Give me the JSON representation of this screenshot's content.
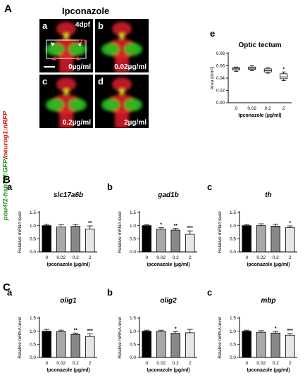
{
  "panelA": {
    "letter": "A",
    "title": "Ipconazole",
    "ylabel_green": "pou4f1-hsp70l:GFP",
    "ylabel_sep": "/",
    "ylabel_red": "neurog1:nRFP",
    "stage": "4dpf",
    "ot_label": "OT",
    "images": [
      {
        "tag": "a",
        "conc": "0µg/ml"
      },
      {
        "tag": "b",
        "conc": "0.02µg/ml"
      },
      {
        "tag": "c",
        "conc": "0.2µg/ml"
      },
      {
        "tag": "d",
        "conc": "2µg/ml"
      }
    ],
    "colors": {
      "green": "#22cc22",
      "red": "#e8202a"
    }
  },
  "panelB_letter": "B",
  "panelC_letter": "C",
  "chart_data": [
    {
      "id": "Ae",
      "letter": "e",
      "type": "boxplot",
      "title": "Optic tectum",
      "ylabel": "Area (mm²)",
      "xlabel": "Ipconazole (µg/ml)",
      "categories": [
        "0",
        "0.02",
        "0.2",
        "2"
      ],
      "boxes": [
        {
          "min": 0.051,
          "q1": 0.053,
          "median": 0.055,
          "q3": 0.057,
          "max": 0.058
        },
        {
          "min": 0.052,
          "q1": 0.054,
          "median": 0.056,
          "q3": 0.058,
          "max": 0.06
        },
        {
          "min": 0.048,
          "q1": 0.05,
          "median": 0.052,
          "q3": 0.055,
          "max": 0.057
        },
        {
          "min": 0.036,
          "q1": 0.039,
          "median": 0.042,
          "q3": 0.047,
          "max": 0.05
        }
      ],
      "sig": [
        "",
        "",
        "",
        "*"
      ],
      "ylim": [
        0,
        0.08
      ],
      "yticks": [
        "0.00",
        "0.02",
        "0.04",
        "0.06",
        "0.08"
      ]
    },
    {
      "id": "Ba",
      "letter": "a",
      "type": "bar",
      "title": "slc17a6b",
      "ylabel": "Relative mRNA level",
      "xlabel": "Ipconazole (µg/ml)",
      "categories": [
        "0",
        "0.02",
        "0.2",
        "2"
      ],
      "values": [
        1.0,
        0.95,
        0.97,
        0.87
      ],
      "errors": [
        0.05,
        0.08,
        0.07,
        0.12
      ],
      "sig": [
        "",
        "",
        "",
        "**"
      ],
      "ylim": [
        0,
        1.5
      ],
      "yticks": [
        "0.0",
        "0.5",
        "1.0",
        "1.5"
      ]
    },
    {
      "id": "Bb",
      "letter": "b",
      "type": "bar",
      "title": "gad1b",
      "ylabel": "Relative mRNA level",
      "xlabel": "Ipconazole (µg/ml)",
      "categories": [
        "0",
        "0.02",
        "0.2",
        "2"
      ],
      "values": [
        1.0,
        0.87,
        0.83,
        0.67
      ],
      "errors": [
        0.04,
        0.05,
        0.06,
        0.13
      ],
      "sig": [
        "",
        "*",
        "**",
        "***"
      ],
      "ylim": [
        0,
        1.5
      ],
      "yticks": [
        "0.0",
        "0.5",
        "1.0",
        "1.5"
      ]
    },
    {
      "id": "Bc",
      "letter": "c",
      "type": "bar",
      "title": "th",
      "ylabel": "Relative mRNA level",
      "xlabel": "Ipconazole (µg/ml)",
      "categories": [
        "0",
        "0.02",
        "0.2",
        "2"
      ],
      "values": [
        1.0,
        1.0,
        0.98,
        0.92
      ],
      "errors": [
        0.04,
        0.07,
        0.08,
        0.07
      ],
      "sig": [
        "",
        "",
        "",
        "*"
      ],
      "ylim": [
        0,
        1.5
      ],
      "yticks": [
        "0.0",
        "0.5",
        "1.0",
        "1.5"
      ]
    },
    {
      "id": "Ca",
      "letter": "a",
      "type": "bar",
      "title": "olig1",
      "ylabel": "Relative mRNA level",
      "xlabel": "Ipconazole (µg/ml)",
      "categories": [
        "0",
        "0.02",
        "0.2",
        "2"
      ],
      "values": [
        1.0,
        0.98,
        0.88,
        0.8
      ],
      "errors": [
        0.07,
        0.06,
        0.05,
        0.1
      ],
      "sig": [
        "",
        "",
        "**",
        "***"
      ],
      "ylim": [
        0,
        1.5
      ],
      "yticks": [
        "0.0",
        "0.5",
        "1.0",
        "1.5"
      ]
    },
    {
      "id": "Cb",
      "letter": "b",
      "type": "bar",
      "title": "olig2",
      "ylabel": "Relative mRNA level",
      "xlabel": "Ipconazole (µg/ml)",
      "categories": [
        "0",
        "0.02",
        "0.2",
        "2"
      ],
      "values": [
        1.0,
        0.99,
        0.92,
        0.94
      ],
      "errors": [
        0.04,
        0.05,
        0.06,
        0.13
      ],
      "sig": [
        "",
        "",
        "*",
        ""
      ],
      "ylim": [
        0,
        1.5
      ],
      "yticks": [
        "0.0",
        "0.5",
        "1.0",
        "1.5"
      ]
    },
    {
      "id": "Cc",
      "letter": "c",
      "type": "bar",
      "title": "mbp",
      "ylabel": "Relative mRNA level",
      "xlabel": "Ipconazole (µg/ml)",
      "categories": [
        "0",
        "0.02",
        "0.2",
        "2"
      ],
      "values": [
        1.0,
        0.96,
        0.93,
        0.85
      ],
      "errors": [
        0.04,
        0.06,
        0.06,
        0.06
      ],
      "sig": [
        "",
        "",
        "*",
        "***"
      ],
      "ylim": [
        0,
        1.5
      ],
      "yticks": [
        "0.0",
        "0.5",
        "1.0",
        "1.5"
      ]
    }
  ]
}
